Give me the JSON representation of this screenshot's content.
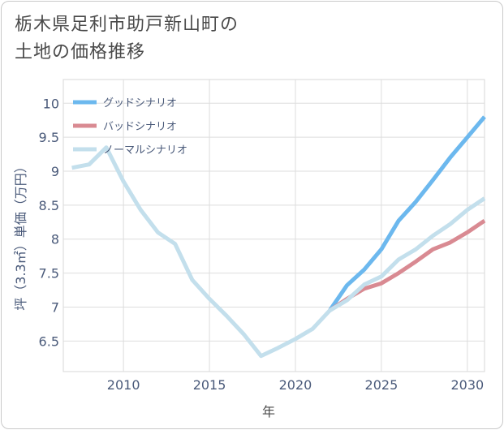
{
  "title": {
    "line1": "栃木県足利市助戸新山町の",
    "line2": "土地の価格推移"
  },
  "chart_data": {
    "type": "line",
    "xlabel": "年",
    "ylabel": "坪（3.3㎡）単価（万円）",
    "xlim": [
      2006.5,
      2031
    ],
    "ylim": [
      6.05,
      10.35
    ],
    "xticks": [
      2010,
      2015,
      2020,
      2025,
      2030
    ],
    "yticks": [
      6.5,
      7,
      7.5,
      8,
      8.5,
      9,
      9.5,
      10
    ],
    "grid": true,
    "legend_position": "top-left",
    "series": [
      {
        "name": "グッドシナリオ",
        "color": "#6cb8ee",
        "x": [
          2022,
          2023,
          2024,
          2025,
          2026,
          2027,
          2028,
          2029,
          2030,
          2031
        ],
        "y": [
          6.95,
          7.32,
          7.55,
          7.85,
          8.27,
          8.55,
          8.87,
          9.2,
          9.5,
          9.8
        ]
      },
      {
        "name": "バッドシナリオ",
        "color": "#d98a92",
        "x": [
          2022,
          2023,
          2024,
          2025,
          2026,
          2027,
          2028,
          2029,
          2030,
          2031
        ],
        "y": [
          6.95,
          7.12,
          7.27,
          7.35,
          7.5,
          7.67,
          7.85,
          7.95,
          8.1,
          8.27
        ]
      },
      {
        "name": "ノーマルシナリオ",
        "color": "#c3dfec",
        "x": [
          2007,
          2008,
          2009,
          2010,
          2011,
          2012,
          2013,
          2014,
          2015,
          2016,
          2017,
          2018,
          2019,
          2020,
          2021,
          2022,
          2023,
          2024,
          2025,
          2026,
          2027,
          2028,
          2029,
          2030,
          2031
        ],
        "y": [
          9.05,
          9.1,
          9.35,
          8.85,
          8.43,
          8.1,
          7.93,
          7.4,
          7.12,
          6.87,
          6.6,
          6.28,
          6.4,
          6.53,
          6.68,
          6.95,
          7.1,
          7.33,
          7.45,
          7.7,
          7.85,
          8.05,
          8.22,
          8.43,
          8.6
        ]
      }
    ]
  }
}
